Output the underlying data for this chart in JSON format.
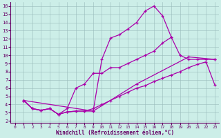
{
  "xlabel": "Windchill (Refroidissement éolien,°C)",
  "xlim": [
    -0.5,
    23.5
  ],
  "ylim": [
    1.8,
    16.5
  ],
  "xticks": [
    0,
    1,
    2,
    3,
    4,
    5,
    6,
    7,
    8,
    9,
    10,
    11,
    12,
    13,
    14,
    15,
    16,
    17,
    18,
    19,
    20,
    21,
    22,
    23
  ],
  "yticks": [
    2,
    3,
    4,
    5,
    6,
    7,
    8,
    9,
    10,
    11,
    12,
    13,
    14,
    15,
    16
  ],
  "bg_color": "#cceee8",
  "line_color": "#aa00aa",
  "grid_color": "#99bbbb",
  "line1_x": [
    1,
    2,
    3,
    4,
    5,
    6,
    7,
    8,
    9,
    10,
    11,
    12,
    13,
    14,
    15,
    16,
    17,
    18
  ],
  "line1_y": [
    4.5,
    3.5,
    3.3,
    3.5,
    2.8,
    3.1,
    3.2,
    3.2,
    3.2,
    9.5,
    12.1,
    12.5,
    13.2,
    14.0,
    15.4,
    16.0,
    14.8,
    12.2
  ],
  "line2_x": [
    1,
    2,
    3,
    4,
    5,
    6,
    7,
    8,
    9,
    10,
    11,
    12,
    13,
    14,
    15,
    16,
    17,
    18,
    19,
    20,
    21,
    22,
    23
  ],
  "line2_y": [
    4.5,
    3.5,
    3.3,
    3.5,
    2.8,
    3.5,
    6.0,
    6.5,
    7.8,
    7.8,
    8.5,
    8.5,
    9.0,
    9.5,
    10.0,
    10.5,
    11.5,
    12.2,
    10.0,
    9.5,
    9.5,
    9.5,
    9.5
  ],
  "line3_x": [
    1,
    9,
    14,
    20,
    23
  ],
  "line3_y": [
    4.5,
    3.2,
    6.5,
    9.8,
    9.5
  ],
  "line4_x": [
    1,
    2,
    3,
    4,
    5,
    6,
    7,
    8,
    9,
    10,
    11,
    12,
    13,
    14,
    15,
    16,
    17,
    18,
    19,
    20,
    21,
    22,
    23
  ],
  "line4_y": [
    4.5,
    3.5,
    3.3,
    3.5,
    2.8,
    3.1,
    3.2,
    3.2,
    3.5,
    4.0,
    4.5,
    5.0,
    5.5,
    6.0,
    6.3,
    6.8,
    7.2,
    7.6,
    8.0,
    8.5,
    8.9,
    9.2,
    6.4
  ]
}
